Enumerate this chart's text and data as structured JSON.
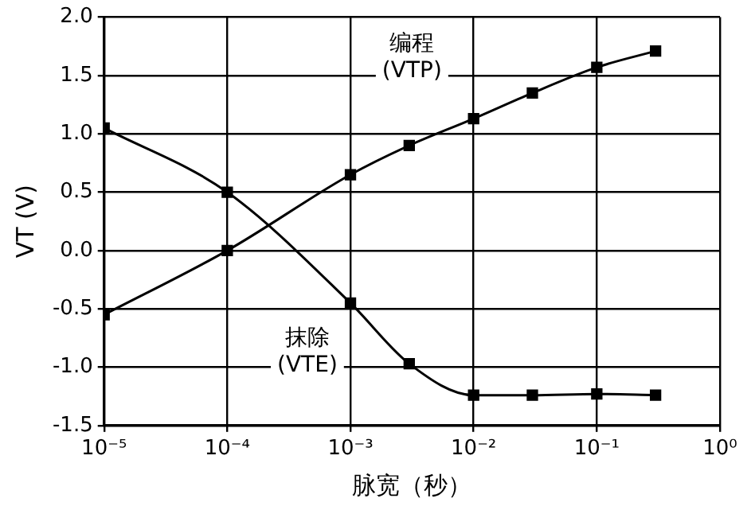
{
  "chart_data": {
    "type": "line",
    "xlabel": "脉宽（秒）",
    "ylabel": "VT (V)",
    "log": "x",
    "xlim": [
      1e-05,
      1
    ],
    "xticks": [
      {
        "value": 1e-05,
        "label": "10⁻⁵"
      },
      {
        "value": 0.0001,
        "label": "10⁻⁴"
      },
      {
        "value": 0.001,
        "label": "10⁻³"
      },
      {
        "value": 0.01,
        "label": "10⁻²"
      },
      {
        "value": 0.1,
        "label": "10⁻¹"
      },
      {
        "value": 1,
        "label": "10⁰"
      }
    ],
    "ylim": [
      -1.5,
      2.0
    ],
    "yticks": [
      {
        "value": -1.5,
        "label": "-1.5"
      },
      {
        "value": -1,
        "label": "-1.0"
      },
      {
        "value": -0.5,
        "label": "-0.5"
      },
      {
        "value": 0,
        "label": "0.0"
      },
      {
        "value": 0.5,
        "label": "0.5"
      },
      {
        "value": 1,
        "label": "1.0"
      },
      {
        "value": 1.5,
        "label": "1.5"
      },
      {
        "value": 2,
        "label": "2.0"
      }
    ],
    "grid": true,
    "marker": "square",
    "line_style": "solid",
    "series": [
      {
        "name": "编程 (VTP)",
        "color": "#000000",
        "x": [
          1e-05,
          0.0001,
          0.001,
          0.003,
          0.01,
          0.03,
          0.1,
          0.3
        ],
        "values": [
          -0.55,
          0.0,
          0.65,
          0.9,
          1.13,
          1.35,
          1.57,
          1.71
        ]
      },
      {
        "name": "抹除 (VTE)",
        "color": "#000000",
        "x": [
          1e-05,
          0.0001,
          0.001,
          0.003,
          0.01,
          0.03,
          0.1,
          0.3
        ],
        "values": [
          1.05,
          0.5,
          -0.45,
          -0.97,
          -1.24,
          -1.24,
          -1.23,
          -1.24
        ]
      }
    ]
  }
}
